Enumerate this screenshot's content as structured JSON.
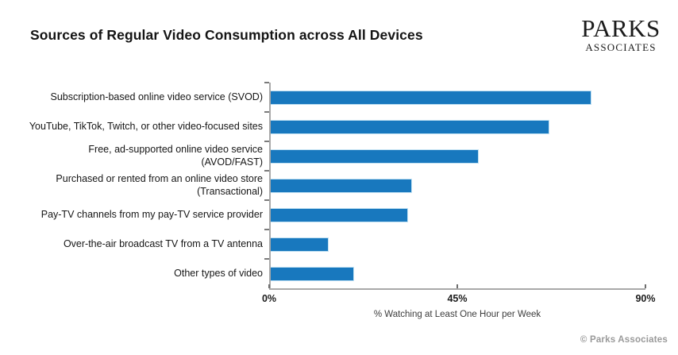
{
  "header": {
    "logo": {
      "line1": "PARKS",
      "line2": "ASSOCIATES"
    }
  },
  "footer": {
    "credit": "© Parks Associates"
  },
  "chart_data": {
    "type": "bar",
    "orientation": "horizontal",
    "title": "Sources of Regular Video Consumption across All Devices",
    "categories": [
      "Subscription-based online video service (SVOD)",
      "YouTube, TikTok, Twitch, or other video-focused sites",
      "Free, ad-supported online video service (AVOD/FAST)",
      "Purchased or rented from an online video store\n(Transactional)",
      "Pay-TV channels from my pay-TV service provider",
      "Over-the-air broadcast TV from a TV antenna",
      "Other types of video"
    ],
    "values": [
      77,
      67,
      50,
      34,
      33,
      14,
      20
    ],
    "xlabel": "% Watching at Least One Hour per Week",
    "xlim": [
      0,
      90
    ],
    "xticks": [
      {
        "value": 0,
        "label": "0%"
      },
      {
        "value": 45,
        "label": "45%"
      },
      {
        "value": 90,
        "label": "90%"
      }
    ],
    "bar_color": "#1878be",
    "grid": false,
    "legend": false
  }
}
